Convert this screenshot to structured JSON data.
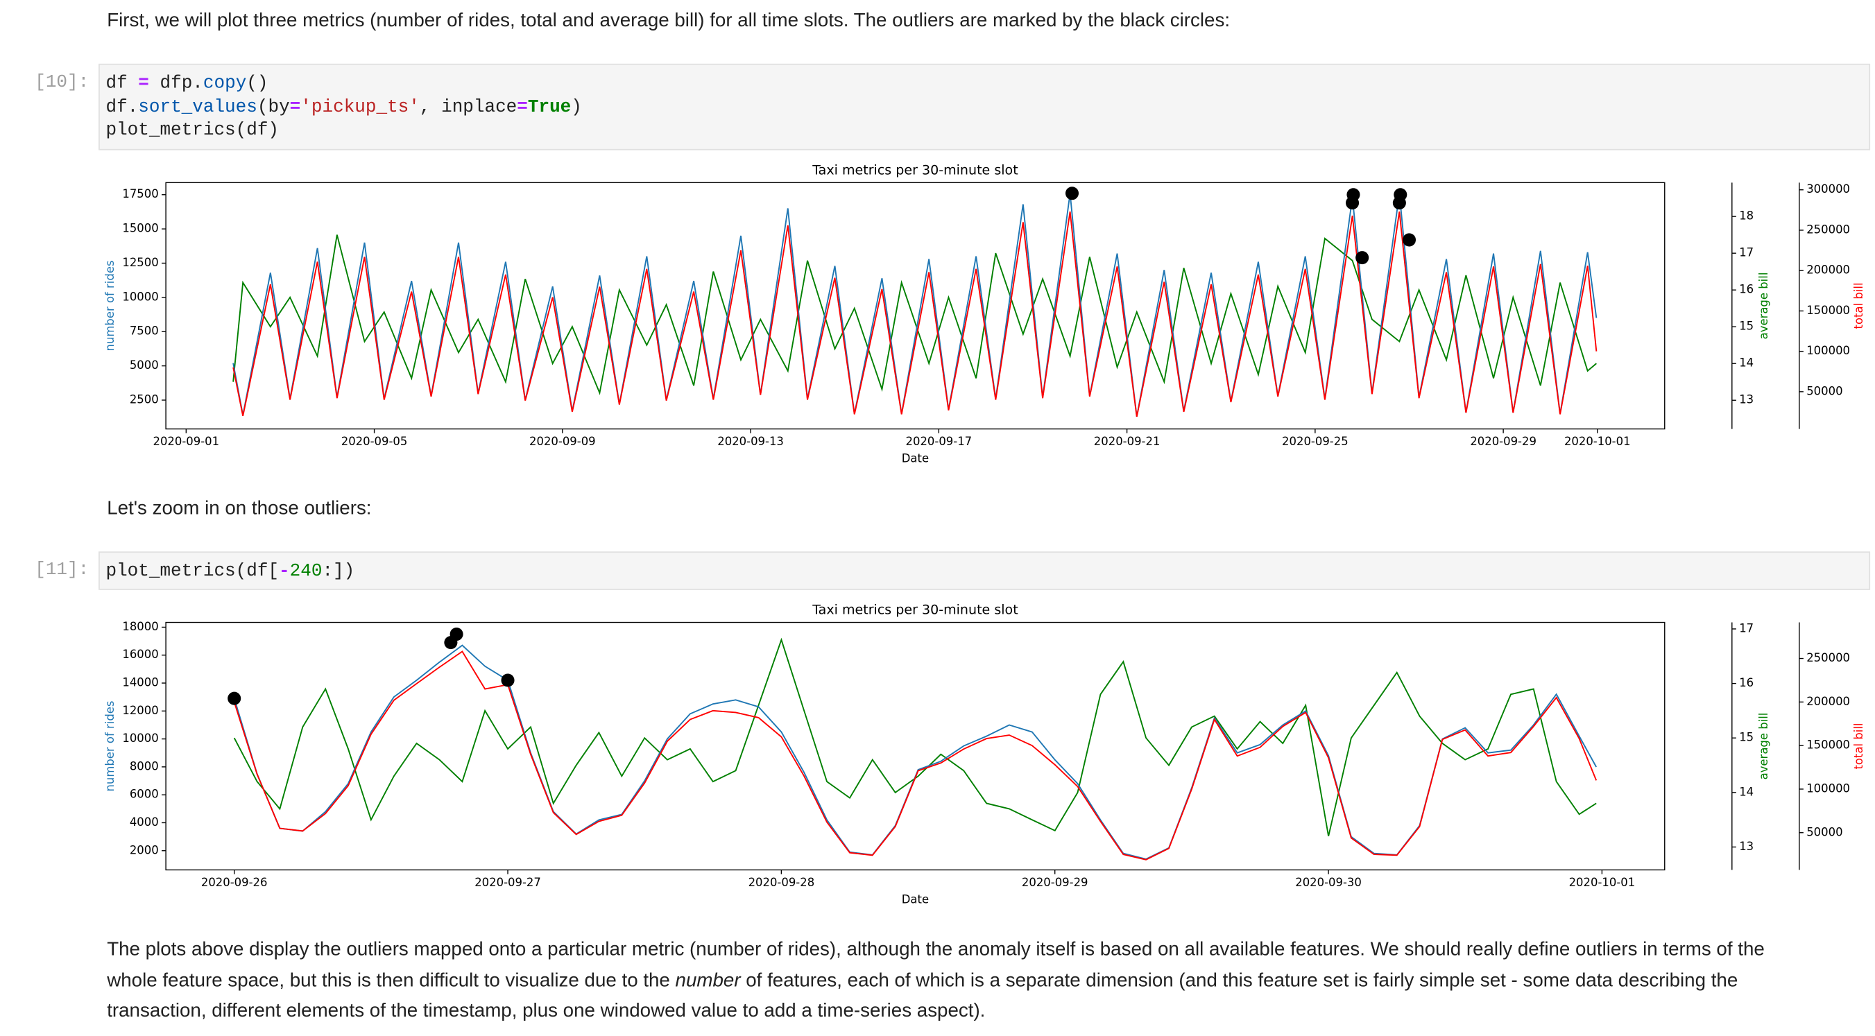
{
  "cells": [
    {
      "text": "First, we will plot three metrics (number of rides, total and average bill) for all time slots. The outliers are marked by the black circles:"
    },
    {
      "prompt": "[10]:",
      "code": [
        [
          {
            "text": "df "
          },
          {
            "text": "=",
            "color": "#aa22ff",
            "bold": true
          },
          {
            "text": " dfp."
          },
          {
            "text": "copy",
            "color": "#0055aa"
          },
          {
            "text": "()"
          }
        ],
        [
          {
            "text": "df."
          },
          {
            "text": "sort_values",
            "color": "#0055aa"
          },
          {
            "text": "(by"
          },
          {
            "text": "=",
            "color": "#aa22ff",
            "bold": true
          },
          {
            "text": "'pickup_ts'",
            "color": "#ba2121"
          },
          {
            "text": ", inplace"
          },
          {
            "text": "=",
            "color": "#aa22ff",
            "bold": true
          },
          {
            "text": "True",
            "color": "#008000",
            "bold": true
          },
          {
            "text": ")"
          }
        ],
        [
          {
            "text": "plot_metrics(df)"
          }
        ]
      ]
    },
    {
      "text": "Let's zoom in on those outliers:"
    },
    {
      "prompt": "[11]:",
      "code": [
        [
          {
            "text": "plot_metrics(df["
          },
          {
            "text": "-",
            "color": "#aa22ff",
            "bold": true
          },
          {
            "text": "240",
            "color": "#008000"
          },
          {
            "text": ":])"
          }
        ]
      ]
    },
    {
      "runs": [
        {
          "text": "The plots above display the outliers mapped onto a particular metric (number of rides), although the anomaly itself is based on all available features. We should really define outliers in terms of the whole feature space, but this is then difficult to visualize due to the "
        },
        {
          "text": "number",
          "italic": true
        },
        {
          "text": " of features, each of which is a separate dimension (and this feature set is fairly simple set - some data describing the transaction, different elements of the timestamp, plus one windowed value to add a time-series aspect)."
        }
      ]
    }
  ],
  "chart_data": [
    {
      "type": "line",
      "title": "Taxi metrics per 30-minute slot",
      "xlabel": "Date",
      "ylabel": "number of rides",
      "y2label": "average bill",
      "y3label": "total bill",
      "xlim": [
        "2020-08-31 13:40",
        "2020-10-02 10:20"
      ],
      "xticks": [
        "2020-09-01",
        "2020-09-05",
        "2020-09-09",
        "2020-09-13",
        "2020-09-17",
        "2020-09-21",
        "2020-09-25",
        "2020-09-29",
        "2020-10-01"
      ],
      "ylim": [
        395,
        18380
      ],
      "yticks": [
        2500,
        5000,
        7500,
        10000,
        12500,
        15000,
        17500
      ],
      "y2lim": [
        12.22,
        18.92
      ],
      "y2ticks": [
        13,
        14,
        15,
        16,
        17,
        18
      ],
      "y3lim": [
        3870,
        308900
      ],
      "y3ticks": [
        50000,
        100000,
        150000,
        200000,
        250000,
        300000
      ],
      "x": [
        "2020-09-02 00:00",
        "2020-09-02 05:00",
        "2020-09-02 19:00",
        "2020-09-03 05:00",
        "2020-09-03 19:00",
        "2020-09-04 05:00",
        "2020-09-04 19:00",
        "2020-09-05 05:00",
        "2020-09-05 19:00",
        "2020-09-06 05:00",
        "2020-09-06 19:00",
        "2020-09-07 05:00",
        "2020-09-07 19:00",
        "2020-09-08 05:00",
        "2020-09-08 19:00",
        "2020-09-09 05:00",
        "2020-09-09 19:00",
        "2020-09-10 05:00",
        "2020-09-10 19:00",
        "2020-09-11 05:00",
        "2020-09-11 19:00",
        "2020-09-12 05:00",
        "2020-09-12 19:00",
        "2020-09-13 05:00",
        "2020-09-13 19:00",
        "2020-09-14 05:00",
        "2020-09-14 19:00",
        "2020-09-15 05:00",
        "2020-09-15 19:00",
        "2020-09-16 05:00",
        "2020-09-16 19:00",
        "2020-09-17 05:00",
        "2020-09-17 19:00",
        "2020-09-18 05:00",
        "2020-09-18 19:00",
        "2020-09-19 05:00",
        "2020-09-19 19:00",
        "2020-09-20 05:00",
        "2020-09-20 19:00",
        "2020-09-21 05:00",
        "2020-09-21 19:00",
        "2020-09-22 05:00",
        "2020-09-22 19:00",
        "2020-09-23 05:00",
        "2020-09-23 19:00",
        "2020-09-24 05:00",
        "2020-09-24 19:00",
        "2020-09-25 05:00",
        "2020-09-25 19:00",
        "2020-09-26 05:00",
        "2020-09-26 19:00",
        "2020-09-27 05:00",
        "2020-09-27 19:00",
        "2020-09-28 05:00",
        "2020-09-28 19:00",
        "2020-09-29 05:00",
        "2020-09-29 19:00",
        "2020-09-30 05:00",
        "2020-09-30 19:00",
        "2020-09-30 23:30"
      ],
      "series": [
        {
          "axis": "y2",
          "color": "#008000",
          "values": [
            13.5,
            16.2,
            15.0,
            15.8,
            14.2,
            17.5,
            14.6,
            15.4,
            13.6,
            16.0,
            14.3,
            15.2,
            13.5,
            16.3,
            14.0,
            15.0,
            13.2,
            16.0,
            14.5,
            15.6,
            13.4,
            16.5,
            14.1,
            15.2,
            13.8,
            16.8,
            14.4,
            15.5,
            13.3,
            16.2,
            14.0,
            15.8,
            13.6,
            17.0,
            14.8,
            16.3,
            14.2,
            16.9,
            13.9,
            15.4,
            13.5,
            16.6,
            14.0,
            15.9,
            13.7,
            16.1,
            14.3,
            17.4,
            16.8,
            15.2,
            14.6,
            16.0,
            14.1,
            16.4,
            13.6,
            15.8,
            13.4,
            16.2,
            13.8,
            14.0
          ]
        },
        {
          "axis": "y",
          "color": "#1f77b4",
          "values": [
            5200,
            1400,
            11800,
            2600,
            13600,
            2700,
            14000,
            2600,
            11200,
            2800,
            14000,
            3000,
            12600,
            2500,
            10800,
            1700,
            11600,
            2200,
            13000,
            2500,
            11200,
            2600,
            14500,
            2900,
            16500,
            2600,
            12300,
            1500,
            11400,
            1500,
            12800,
            1800,
            13000,
            2600,
            16800,
            2700,
            17600,
            2800,
            13200,
            1300,
            12000,
            1700,
            11800,
            2400,
            12600,
            2800,
            13000,
            2600,
            17300,
            3000,
            17600,
            2700,
            12800,
            1600,
            13200,
            1600,
            13400,
            1500,
            13300,
            8500
          ]
        },
        {
          "axis": "y3",
          "color": "#ff0000",
          "values": [
            80000,
            20000,
            183000,
            40000,
            211000,
            42000,
            217000,
            40000,
            174000,
            44000,
            217000,
            47000,
            195000,
            39000,
            167000,
            25000,
            180000,
            34000,
            202000,
            39000,
            174000,
            40000,
            225000,
            46000,
            256000,
            40000,
            191000,
            22000,
            177000,
            22000,
            198000,
            27000,
            202000,
            40000,
            260000,
            42000,
            273000,
            44000,
            205000,
            19000,
            186000,
            25000,
            183000,
            37000,
            195000,
            44000,
            202000,
            40000,
            268000,
            47000,
            273000,
            42000,
            198000,
            24000,
            205000,
            24000,
            208000,
            22000,
            206000,
            100000
          ]
        }
      ],
      "outliers": {
        "color": "#000000",
        "x": [
          "2020-09-19 20:00",
          "2020-09-25 19:00",
          "2020-09-25 19:30",
          "2020-09-26 00:00",
          "2020-09-26 19:00",
          "2020-09-26 19:30",
          "2020-09-27 00:00"
        ],
        "values": [
          17600,
          16900,
          17500,
          12900,
          16900,
          17500,
          14200
        ]
      }
    },
    {
      "type": "line",
      "title": "Taxi metrics per 30-minute slot",
      "xlabel": "Date",
      "ylabel": "number of rides",
      "y2label": "average bill",
      "y3label": "total bill",
      "xlim": [
        "2020-09-25 18:00",
        "2020-10-01 05:30"
      ],
      "xticks": [
        "2020-09-26",
        "2020-09-27",
        "2020-09-28",
        "2020-09-29",
        "2020-09-30",
        "2020-10-01"
      ],
      "ylim": [
        624,
        18344
      ],
      "yticks": [
        2000,
        4000,
        6000,
        8000,
        10000,
        12000,
        14000,
        16000,
        18000
      ],
      "y2lim": [
        12.58,
        17.12
      ],
      "y2ticks": [
        13,
        14,
        15,
        16,
        17
      ],
      "y3lim": [
        7240,
        291400
      ],
      "y3ticks": [
        50000,
        100000,
        150000,
        200000,
        250000
      ],
      "x": [
        "2020-09-26 00:00",
        "2020-09-26 02:00",
        "2020-09-26 04:00",
        "2020-09-26 06:00",
        "2020-09-26 08:00",
        "2020-09-26 10:00",
        "2020-09-26 12:00",
        "2020-09-26 14:00",
        "2020-09-26 16:00",
        "2020-09-26 18:00",
        "2020-09-26 20:00",
        "2020-09-26 22:00",
        "2020-09-27 00:00",
        "2020-09-27 02:00",
        "2020-09-27 04:00",
        "2020-09-27 06:00",
        "2020-09-27 08:00",
        "2020-09-27 10:00",
        "2020-09-27 12:00",
        "2020-09-27 14:00",
        "2020-09-27 16:00",
        "2020-09-27 18:00",
        "2020-09-27 20:00",
        "2020-09-27 22:00",
        "2020-09-28 00:00",
        "2020-09-28 02:00",
        "2020-09-28 04:00",
        "2020-09-28 06:00",
        "2020-09-28 08:00",
        "2020-09-28 10:00",
        "2020-09-28 12:00",
        "2020-09-28 14:00",
        "2020-09-28 16:00",
        "2020-09-28 18:00",
        "2020-09-28 20:00",
        "2020-09-28 22:00",
        "2020-09-29 00:00",
        "2020-09-29 02:00",
        "2020-09-29 04:00",
        "2020-09-29 06:00",
        "2020-09-29 08:00",
        "2020-09-29 10:00",
        "2020-09-29 12:00",
        "2020-09-29 14:00",
        "2020-09-29 16:00",
        "2020-09-29 18:00",
        "2020-09-29 20:00",
        "2020-09-29 22:00",
        "2020-09-30 00:00",
        "2020-09-30 02:00",
        "2020-09-30 04:00",
        "2020-09-30 06:00",
        "2020-09-30 08:00",
        "2020-09-30 10:00",
        "2020-09-30 12:00",
        "2020-09-30 14:00",
        "2020-09-30 16:00",
        "2020-09-30 18:00",
        "2020-09-30 20:00",
        "2020-09-30 22:00",
        "2020-09-30 23:30"
      ],
      "series": [
        {
          "axis": "y2",
          "color": "#008000",
          "values": [
            15.0,
            14.2,
            13.7,
            15.2,
            15.9,
            14.8,
            13.5,
            14.3,
            14.9,
            14.6,
            14.2,
            15.5,
            14.8,
            15.2,
            13.8,
            14.5,
            15.1,
            14.3,
            15.0,
            14.6,
            14.8,
            14.2,
            14.4,
            15.6,
            16.8,
            15.5,
            14.2,
            13.9,
            14.6,
            14.0,
            14.3,
            14.7,
            14.4,
            13.8,
            13.7,
            13.5,
            13.3,
            14.0,
            15.8,
            16.4,
            15.0,
            14.5,
            15.2,
            15.4,
            14.8,
            15.3,
            14.9,
            15.6,
            13.2,
            15.0,
            15.6,
            16.2,
            15.4,
            14.9,
            14.6,
            14.8,
            15.8,
            15.9,
            14.2,
            13.6,
            13.8
          ]
        },
        {
          "axis": "y",
          "color": "#1f77b4",
          "values": [
            12900,
            7500,
            3600,
            3400,
            4800,
            6800,
            10500,
            13000,
            14200,
            15500,
            16700,
            15200,
            14200,
            9000,
            4800,
            3200,
            4200,
            4600,
            7000,
            10000,
            11800,
            12500,
            12800,
            12300,
            10500,
            7600,
            4200,
            1900,
            1700,
            3800,
            7800,
            8400,
            9500,
            10200,
            11000,
            10500,
            8500,
            6800,
            4200,
            1800,
            1400,
            2200,
            6500,
            11500,
            9000,
            9600,
            11000,
            12000,
            8800,
            3000,
            1800,
            1700,
            3800,
            10000,
            10800,
            9000,
            9200,
            11000,
            13200,
            10200,
            8000
          ]
        },
        {
          "axis": "y3",
          "color": "#ff0000",
          "values": [
            200000,
            117000,
            55000,
            52000,
            72000,
            104000,
            163000,
            202000,
            221000,
            240000,
            258000,
            215000,
            220000,
            140000,
            73000,
            48000,
            63000,
            70000,
            107000,
            155000,
            180000,
            190000,
            188000,
            182000,
            160000,
            115000,
            62000,
            27000,
            24000,
            57000,
            121000,
            130000,
            146000,
            158000,
            162000,
            150000,
            128000,
            103000,
            63000,
            25000,
            19000,
            32000,
            100000,
            180000,
            138000,
            148000,
            172000,
            188000,
            136000,
            44000,
            25000,
            24000,
            57000,
            157000,
            168000,
            138000,
            142000,
            172000,
            205000,
            158000,
            110000
          ]
        }
      ],
      "outliers": {
        "color": "#000000",
        "x": [
          "2020-09-26 00:00",
          "2020-09-26 19:00",
          "2020-09-26 19:30",
          "2020-09-27 00:00"
        ],
        "values": [
          12900,
          16900,
          17500,
          14200
        ]
      }
    }
  ]
}
